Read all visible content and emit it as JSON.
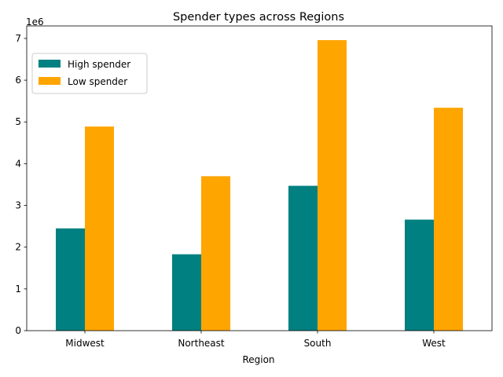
{
  "chart_data": {
    "type": "bar",
    "title": "Spender types across Regions",
    "xlabel": "Region",
    "ylabel": "",
    "y_offset_label": "1e6",
    "categories": [
      "Midwest",
      "Northeast",
      "South",
      "West"
    ],
    "series": [
      {
        "name": "High spender",
        "color": "#008080",
        "values": [
          2450000,
          1830000,
          3470000,
          2660000
        ]
      },
      {
        "name": "Low spender",
        "color": "#FFA500",
        "values": [
          4890000,
          3700000,
          6960000,
          5340000
        ]
      }
    ],
    "ylim": [
      0,
      7300000
    ],
    "yticks": [
      0,
      1000000,
      2000000,
      3000000,
      4000000,
      5000000,
      6000000,
      7000000
    ],
    "ytick_labels": [
      "0",
      "1",
      "2",
      "3",
      "4",
      "5",
      "6",
      "7"
    ],
    "grid": false,
    "legend_position": "upper-left"
  }
}
